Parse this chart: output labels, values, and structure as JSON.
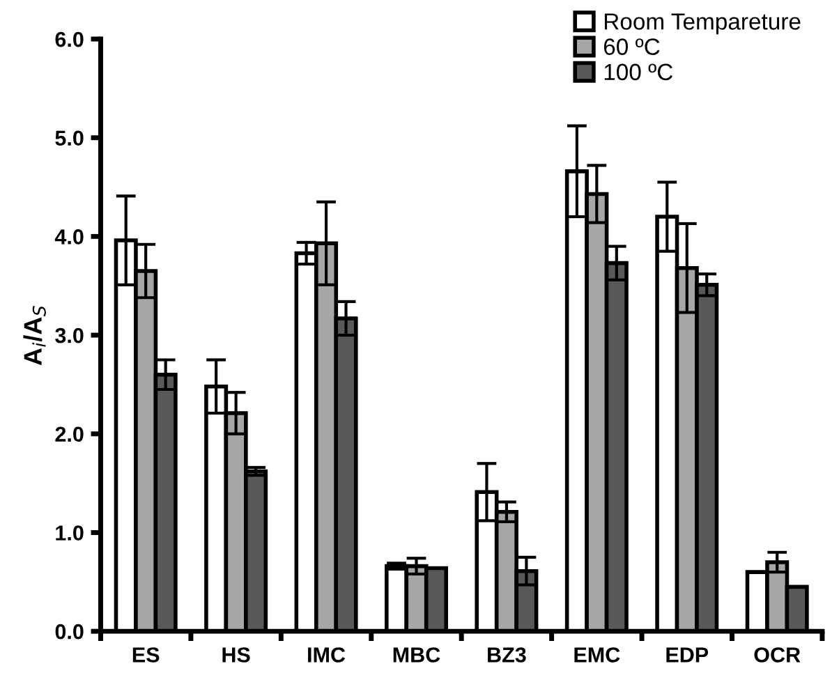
{
  "chart_data": {
    "type": "bar",
    "ylabel": "A$_{i}$/A$_{S}$",
    "categories": [
      "ES",
      "HS",
      "IMC",
      "MBC",
      "BZ3",
      "EMC",
      "EDP",
      "OCR"
    ],
    "series": [
      {
        "name": "Room Tempareture",
        "color": "#ffffff",
        "values": [
          3.96,
          2.48,
          3.83,
          0.66,
          1.41,
          4.66,
          4.2,
          0.6
        ],
        "errors": [
          0.45,
          0.27,
          0.11,
          0.03,
          0.29,
          0.46,
          0.35,
          null
        ]
      },
      {
        "name": "60 ºC",
        "color": "#a6a6a6",
        "values": [
          3.65,
          2.21,
          3.93,
          0.66,
          1.21,
          4.43,
          3.68,
          0.7
        ],
        "errors": [
          0.27,
          0.21,
          0.42,
          0.08,
          0.1,
          0.29,
          0.45,
          0.1
        ]
      },
      {
        "name": "100 ºC",
        "color": "#595959",
        "values": [
          2.6,
          1.62,
          3.17,
          0.64,
          0.61,
          3.73,
          3.51,
          0.45
        ],
        "errors": [
          0.15,
          0.04,
          0.17,
          null,
          0.14,
          0.17,
          0.11,
          null
        ]
      }
    ],
    "ylim": [
      0,
      6
    ],
    "yticks": [
      {
        "value": 0,
        "label": "0.0"
      },
      {
        "value": 1,
        "label": "1.0"
      },
      {
        "value": 2,
        "label": "2.0"
      },
      {
        "value": 3,
        "label": "3.0"
      },
      {
        "value": 4,
        "label": "4.0"
      },
      {
        "value": 5,
        "label": "5.0"
      },
      {
        "value": 6,
        "label": "6.0"
      }
    ],
    "grid": false,
    "legend": "top right"
  }
}
